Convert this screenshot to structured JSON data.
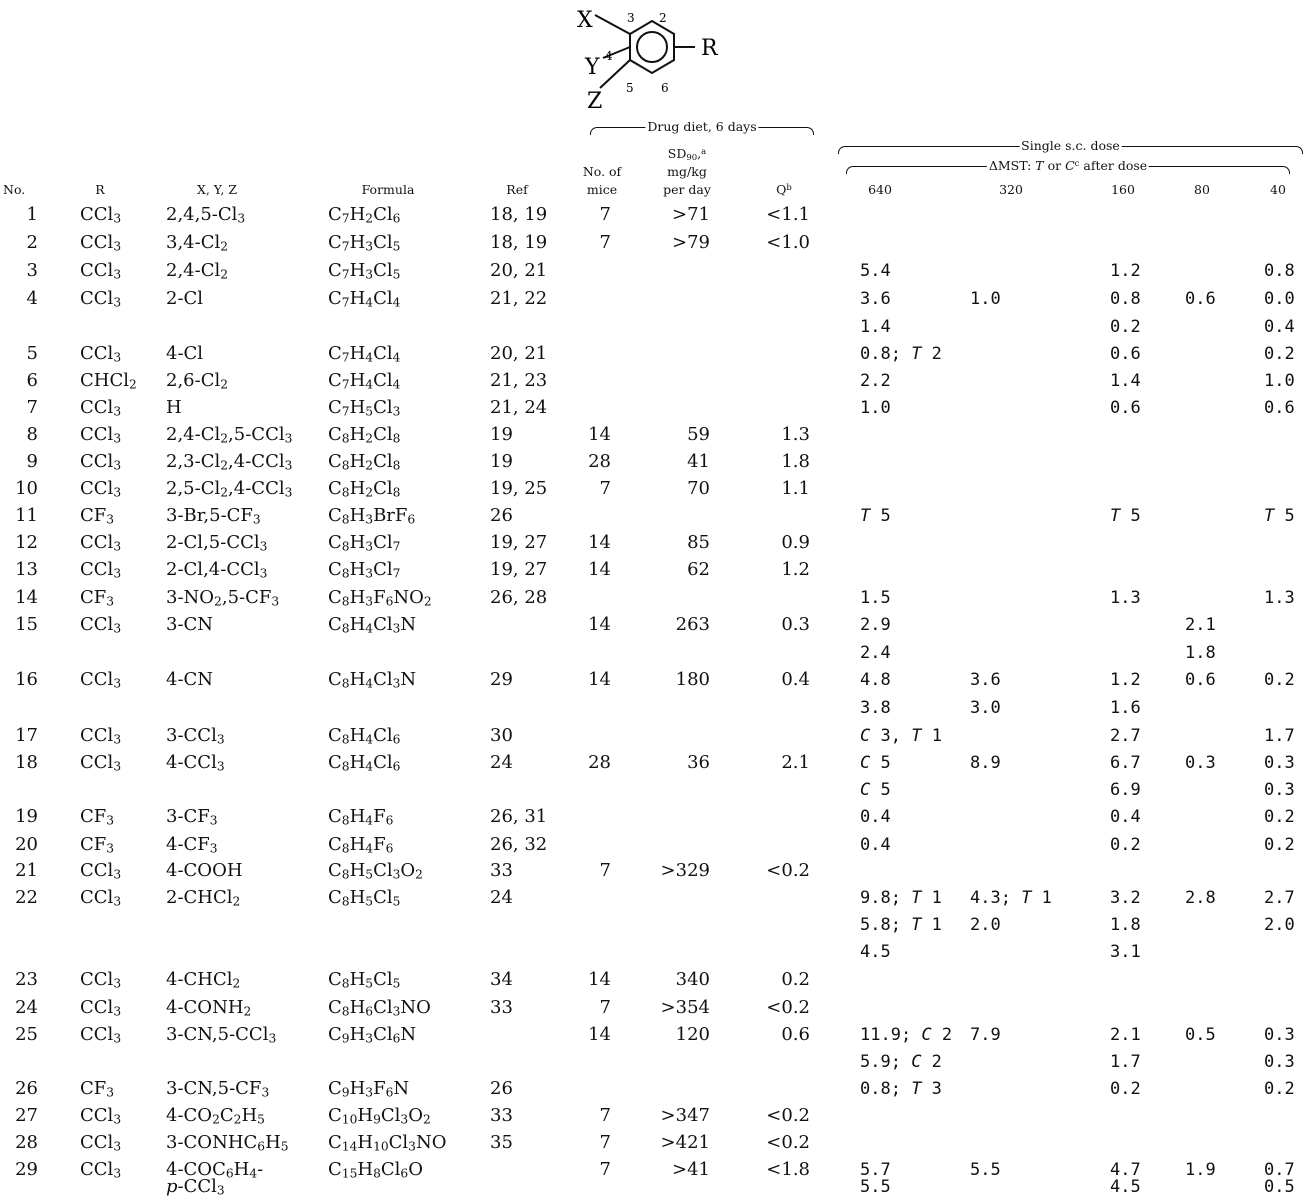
{
  "structure": {
    "X": "X",
    "Y": "Y",
    "Z": "Z",
    "R": "R",
    "n2": "2",
    "n3": "3",
    "n4": "4",
    "n5": "5",
    "n6": "6"
  },
  "headers": {
    "no": "No.",
    "r": "R",
    "xyz": "X, Y, Z",
    "formula": "Formula",
    "ref": "Ref",
    "mice_1": "No. of",
    "mice_2": "mice",
    "drug_diet": "Drug diet, 6 days",
    "sd90": "SD_90,^a",
    "mgkg": "mg/kg",
    "perday": "per day",
    "q": "Q^b",
    "single": "Single s.c. dose",
    "dmst": "ΔMST: _T_ or _C_^c after dose",
    "d640": "640",
    "d320": "320",
    "d160": "160",
    "d80": "80",
    "d40": "40"
  },
  "rows": [
    {
      "no": "1",
      "r": "CCl_3",
      "xyz": "2,4,5-Cl_3",
      "formula": "C_7H_2Cl_6",
      "ref": "18, 19",
      "mice": "7",
      "sd": ">71",
      "q": "<1.1"
    },
    {
      "no": "2",
      "r": "CCl_3",
      "xyz": "3,4-Cl_2",
      "formula": "C_7H_3Cl_5",
      "ref": "18, 19",
      "mice": "7",
      "sd": ">79",
      "q": "<1.0"
    },
    {
      "no": "3",
      "r": "CCl_3",
      "xyz": "2,4-Cl_2",
      "formula": "C_7H_3Cl_5",
      "ref": "20, 21",
      "d640": "5.4",
      "d160": "1.2",
      "d40": "0.8"
    },
    {
      "no": "4",
      "r": "CCl_3",
      "xyz": "2-Cl",
      "formula": "C_7H_4Cl_4",
      "ref": "21, 22",
      "d640": "3.6",
      "d320": "1.0",
      "d160": "0.8",
      "d80": "0.6",
      "d40": "0.0"
    },
    {
      "d640": "1.4",
      "d160": "0.2",
      "d40": "0.4"
    },
    {
      "no": "5",
      "r": "CCl_3",
      "xyz": "4-Cl",
      "formula": "C_7H_4Cl_4",
      "ref": "20, 21",
      "d640": "0.8; _T_ 2",
      "d160": "0.6",
      "d40": "0.2"
    },
    {
      "no": "6",
      "r": "CHCl_2",
      "xyz": "2,6-Cl_2",
      "formula": "C_7H_4Cl_4",
      "ref": "21, 23",
      "d640": "2.2",
      "d160": "1.4",
      "d40": "1.0"
    },
    {
      "no": "7",
      "r": "CCl_3",
      "xyz": "H",
      "formula": "C_7H_5Cl_3",
      "ref": "21, 24",
      "d640": "1.0",
      "d160": "0.6",
      "d40": "0.6"
    },
    {
      "no": "8",
      "r": "CCl_3",
      "xyz": "2,4-Cl_2,5-CCl_3",
      "formula": "C_8H_2Cl_8",
      "ref": "19",
      "mice": "14",
      "sd": "59",
      "q": "1.3"
    },
    {
      "no": "9",
      "r": "CCl_3",
      "xyz": "2,3-Cl_2,4-CCl_3",
      "formula": "C_8H_2Cl_8",
      "ref": "19",
      "mice": "28",
      "sd": "41",
      "q": "1.8"
    },
    {
      "no": "10",
      "r": "CCl_3",
      "xyz": "2,5-Cl_2,4-CCl_3",
      "formula": "C_8H_2Cl_8",
      "ref": "19, 25",
      "mice": "7",
      "sd": "70",
      "q": "1.1"
    },
    {
      "no": "11",
      "r": "CF_3",
      "xyz": "3-Br,5-CF_3",
      "formula": "C_8H_3BrF_6",
      "ref": "26",
      "d640": "_T_ 5",
      "d160": "_T_ 5",
      "d40": "_T_ 5"
    },
    {
      "no": "12",
      "r": "CCl_3",
      "xyz": "2-Cl,5-CCl_3",
      "formula": "C_8H_3Cl_7",
      "ref": "19, 27",
      "mice": "14",
      "sd": "85",
      "q": "0.9"
    },
    {
      "no": "13",
      "r": "CCl_3",
      "xyz": "2-Cl,4-CCl_3",
      "formula": "C_8H_3Cl_7",
      "ref": "19, 27",
      "mice": "14",
      "sd": "62",
      "q": "1.2"
    },
    {
      "no": "14",
      "r": "CF_3",
      "xyz": "3-NO_2,5-CF_3",
      "formula": "C_8H_3F_6NO_2",
      "ref": "26, 28",
      "d640": "1.5",
      "d160": "1.3",
      "d40": "1.3"
    },
    {
      "no": "15",
      "r": "CCl_3",
      "xyz": "3-CN",
      "formula": "C_8H_4Cl_3N",
      "mice": "14",
      "sd": "263",
      "q": "0.3",
      "d640": "2.9",
      "d80": "2.1"
    },
    {
      "d640": "2.4",
      "d80": "1.8"
    },
    {
      "no": "16",
      "r": "CCl_3",
      "xyz": "4-CN",
      "formula": "C_8H_4Cl_3N",
      "ref": "29",
      "mice": "14",
      "sd": "180",
      "q": "0.4",
      "d640": "4.8",
      "d320": "3.6",
      "d160": "1.2",
      "d80": "0.6",
      "d40": "0.2"
    },
    {
      "d640": "3.8",
      "d320": "3.0",
      "d160": "1.6"
    },
    {
      "no": "17",
      "r": "CCl_3",
      "xyz": "3-CCl_3",
      "formula": "C_8H_4Cl_6",
      "ref": "30",
      "d640": "_C_ 3, _T_ 1",
      "d160": "2.7",
      "d40": "1.7"
    },
    {
      "no": "18",
      "r": "CCl_3",
      "xyz": "4-CCl_3",
      "formula": "C_8H_4Cl_6",
      "ref": "24",
      "mice": "28",
      "sd": "36",
      "q": "2.1",
      "d640": "_C_ 5",
      "d320": "8.9",
      "d160": "6.7",
      "d80": "0.3",
      "d40": "0.3"
    },
    {
      "d640": "_C_ 5",
      "d160": "6.9",
      "d40": "0.3"
    },
    {
      "no": "19",
      "r": "CF_3",
      "xyz": "3-CF_3",
      "formula": "C_8H_4F_6",
      "ref": "26, 31",
      "d640": "0.4",
      "d160": "0.4",
      "d40": "0.2"
    },
    {
      "no": "20",
      "r": "CF_3",
      "xyz": "4-CF_3",
      "formula": "C_8H_4F_6",
      "ref": "26, 32",
      "d640": "0.4",
      "d160": "0.2",
      "d40": "0.2"
    },
    {
      "no": "21",
      "r": "CCl_3",
      "xyz": "4-COOH",
      "formula": "C_8H_5Cl_3O_2",
      "ref": "33",
      "mice": "7",
      "sd": ">329",
      "q": "<0.2"
    },
    {
      "no": "22",
      "r": "CCl_3",
      "xyz": "2-CHCl_2",
      "formula": "C_8H_5Cl_5",
      "ref": "24",
      "d640": "9.8; _T_ 1",
      "d320": "4.3; _T_ 1",
      "d160": "3.2",
      "d80": "2.8",
      "d40": "2.7"
    },
    {
      "d640": "5.8; _T_ 1",
      "d320": "2.0",
      "d160": "1.8",
      "d40": "2.0"
    },
    {
      "d640": "4.5",
      "d160": "3.1"
    },
    {
      "no": "23",
      "r": "CCl_3",
      "xyz": "4-CHCl_2",
      "formula": "C_8H_5Cl_5",
      "ref": "34",
      "mice": "14",
      "sd": "340",
      "q": "0.2"
    },
    {
      "no": "24",
      "r": "CCl_3",
      "xyz": "4-CONH_2",
      "formula": "C_8H_6Cl_3NO",
      "ref": "33",
      "mice": "7",
      "sd": ">354",
      "q": "<0.2"
    },
    {
      "no": "25",
      "r": "CCl_3",
      "xyz": "3-CN,5-CCl_3",
      "formula": "C_9H_3Cl_6N",
      "mice": "14",
      "sd": "120",
      "q": "0.6",
      "d640": "11.9; _C_ 2",
      "d320": "7.9",
      "d160": "2.1",
      "d80": "0.5",
      "d40": "0.3"
    },
    {
      "d640": "5.9; _C_ 2",
      "d160": "1.7",
      "d40": "0.3"
    },
    {
      "no": "26",
      "r": "CF_3",
      "xyz": "3-CN,5-CF_3",
      "formula": "C_9H_3F_6N",
      "ref": "26",
      "d640": "0.8; _T_ 3",
      "d160": "0.2",
      "d40": "0.2"
    },
    {
      "no": "27",
      "r": "CCl_3",
      "xyz": "4-CO_2C_2H_5",
      "formula": "C_10H_9Cl_3O_2",
      "ref": "33",
      "mice": "7",
      "sd": ">347",
      "q": "<0.2"
    },
    {
      "no": "28",
      "r": "CCl_3",
      "xyz": "3-CONHC_6H_5",
      "formula": "C_14H_10Cl_3NO",
      "ref": "35",
      "mice": "7",
      "sd": ">421",
      "q": "<0.2"
    },
    {
      "no": "29",
      "r": "CCl_3",
      "xyz": "4-COC_6H_4-",
      "formula": "C_15H_8Cl_6O",
      "mice": "7",
      "sd": ">41",
      "q": "<1.8",
      "d640": "5.7",
      "d320": "5.5",
      "d160": "4.7",
      "d80": "1.9",
      "d40": "0.7"
    },
    {
      "xyz": "_p_-CCl_3",
      "d640": "5.5",
      "d160": "4.5",
      "d40": "0.5"
    }
  ]
}
